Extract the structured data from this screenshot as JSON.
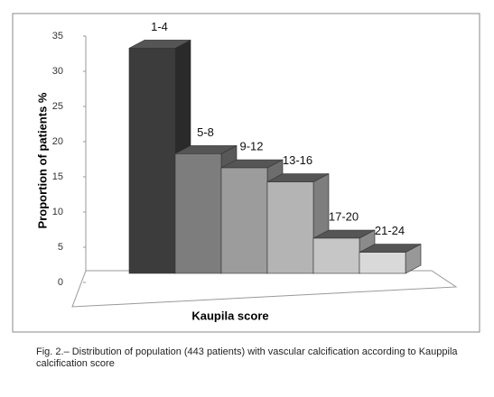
{
  "chart_data": {
    "type": "bar3d",
    "y_label": "Proportion of patients %",
    "x_label": "Kaupila score",
    "categories": [
      "1-4",
      "5-8",
      "9-12",
      "13-16",
      "17-20",
      "21-24"
    ],
    "values": [
      32,
      17,
      15,
      13,
      5,
      3
    ],
    "colors": [
      "#3c3c3c",
      "#7d7d7d",
      "#9c9c9c",
      "#b4b4b4",
      "#c6c6c6",
      "#d9d9d9"
    ],
    "ylim": [
      0,
      35
    ],
    "yticks": [
      0,
      5,
      10,
      15,
      20,
      25,
      30,
      35
    ],
    "grid": false
  },
  "caption": "Fig. 2.– Distribution of population (443 patients) with vascular calcification according to Kauppila calcification score"
}
